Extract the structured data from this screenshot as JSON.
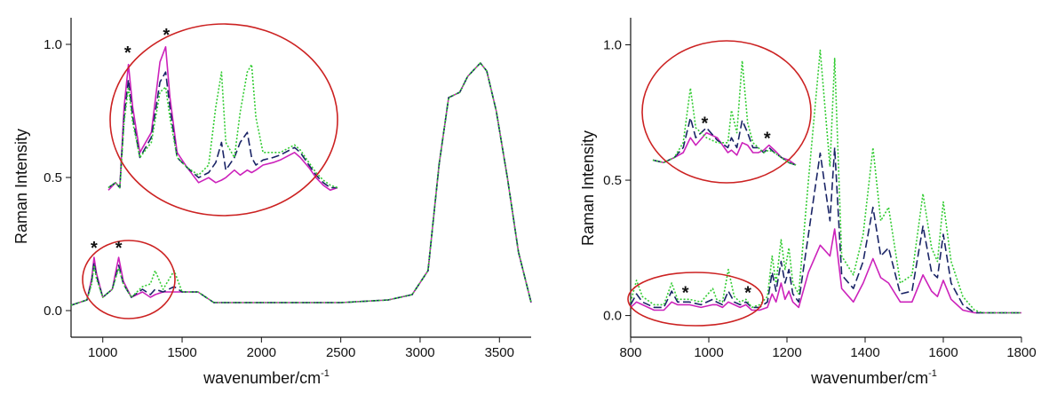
{
  "colors": {
    "magenta": "#cc22bb",
    "navy": "#1a2466",
    "green": "#33cc33",
    "circle": "#cc2222",
    "axis": "#111111"
  },
  "chart_data": [
    {
      "type": "line",
      "title": "",
      "xlabel": "wavenumber/cm",
      "xlabel_sup": "-1",
      "ylabel": "Raman Intensity",
      "xlim": [
        800,
        3700
      ],
      "ylim": [
        -0.1,
        1.1
      ],
      "xticks": [
        "1000",
        "1500",
        "2000",
        "2500",
        "3000",
        "3500"
      ],
      "xtick_values": [
        1000,
        1500,
        2000,
        2500,
        3000,
        3500
      ],
      "yticks": [
        "0.0",
        "0.5",
        "1.0"
      ],
      "ytick_values": [
        0.0,
        0.5,
        1.0
      ],
      "series": [
        {
          "style": "solid",
          "color": "#cc22bb",
          "x": [
            800,
            850,
            900,
            930,
            945,
            960,
            1000,
            1060,
            1100,
            1130,
            1180,
            1250,
            1300,
            1330,
            1380,
            1450,
            1500,
            1600,
            1700,
            2000,
            2500,
            2800,
            2950,
            3050,
            3120,
            3180,
            3250,
            3300,
            3380,
            3420,
            3480,
            3550,
            3620,
            3700
          ],
          "y": [
            0.02,
            0.03,
            0.04,
            0.12,
            0.2,
            0.14,
            0.05,
            0.08,
            0.2,
            0.11,
            0.05,
            0.07,
            0.05,
            0.06,
            0.07,
            0.07,
            0.07,
            0.07,
            0.03,
            0.03,
            0.03,
            0.04,
            0.06,
            0.15,
            0.55,
            0.8,
            0.82,
            0.88,
            0.93,
            0.9,
            0.75,
            0.5,
            0.22,
            0.03
          ]
        },
        {
          "style": "dashed",
          "color": "#1a2466",
          "x": [
            800,
            850,
            900,
            930,
            945,
            960,
            1000,
            1060,
            1100,
            1130,
            1180,
            1250,
            1300,
            1330,
            1380,
            1450,
            1500,
            1600,
            1700,
            2000,
            2500,
            2800,
            2950,
            3050,
            3120,
            3180,
            3250,
            3300,
            3380,
            3420,
            3480,
            3550,
            3620,
            3700
          ],
          "y": [
            0.02,
            0.03,
            0.04,
            0.11,
            0.18,
            0.13,
            0.05,
            0.08,
            0.17,
            0.1,
            0.05,
            0.08,
            0.06,
            0.08,
            0.07,
            0.09,
            0.07,
            0.07,
            0.03,
            0.03,
            0.03,
            0.04,
            0.06,
            0.15,
            0.55,
            0.8,
            0.82,
            0.88,
            0.93,
            0.9,
            0.75,
            0.5,
            0.22,
            0.03
          ]
        },
        {
          "style": "dotted",
          "color": "#33cc33",
          "x": [
            800,
            850,
            900,
            930,
            945,
            960,
            1000,
            1060,
            1100,
            1130,
            1180,
            1250,
            1300,
            1330,
            1380,
            1450,
            1500,
            1600,
            1700,
            2000,
            2500,
            2800,
            2950,
            3050,
            3120,
            3180,
            3250,
            3300,
            3380,
            3420,
            3480,
            3550,
            3620,
            3700
          ],
          "y": [
            0.02,
            0.03,
            0.04,
            0.1,
            0.17,
            0.12,
            0.05,
            0.08,
            0.16,
            0.1,
            0.05,
            0.09,
            0.1,
            0.15,
            0.08,
            0.15,
            0.07,
            0.07,
            0.03,
            0.03,
            0.03,
            0.04,
            0.06,
            0.15,
            0.55,
            0.8,
            0.82,
            0.88,
            0.93,
            0.9,
            0.75,
            0.5,
            0.22,
            0.03
          ]
        }
      ],
      "annotations": [
        {
          "text": "*",
          "x": 945,
          "y": 0.2
        },
        {
          "text": "*",
          "x": 1100,
          "y": 0.2
        },
        {
          "text": "*",
          "x": 1335,
          "y": 0.98
        },
        {
          "text": "*",
          "x": 1605,
          "y": 1.05
        }
      ],
      "inset": {
        "series": [
          {
            "style": "solid",
            "color": "#cc22bb",
            "x": [
              1200,
              1250,
              1280,
              1310,
              1340,
              1370,
              1420,
              1500,
              1560,
              1600,
              1630,
              1680,
              1750,
              1830,
              1900,
              1950,
              1990,
              2020,
              2080,
              2120,
              2170,
              2200,
              2230,
              2280,
              2350,
              2400,
              2500,
              2540,
              2600,
              2650,
              2700,
              2750,
              2800
            ],
            "y": [
              0.47,
              0.5,
              0.48,
              0.8,
              0.97,
              0.8,
              0.62,
              0.7,
              0.98,
              1.04,
              0.84,
              0.62,
              0.56,
              0.5,
              0.52,
              0.5,
              0.51,
              0.52,
              0.55,
              0.53,
              0.55,
              0.54,
              0.55,
              0.57,
              0.58,
              0.59,
              0.62,
              0.6,
              0.56,
              0.52,
              0.49,
              0.47,
              0.48
            ]
          },
          {
            "style": "dashed",
            "color": "#1a2466",
            "x": [
              1200,
              1250,
              1280,
              1310,
              1340,
              1370,
              1420,
              1500,
              1560,
              1600,
              1630,
              1680,
              1750,
              1830,
              1900,
              1950,
              1990,
              2020,
              2080,
              2120,
              2170,
              2200,
              2230,
              2280,
              2350,
              2400,
              2500,
              2540,
              2600,
              2650,
              2700,
              2750,
              2800
            ],
            "y": [
              0.48,
              0.5,
              0.48,
              0.76,
              0.91,
              0.76,
              0.6,
              0.68,
              0.9,
              0.94,
              0.8,
              0.6,
              0.56,
              0.52,
              0.54,
              0.58,
              0.66,
              0.55,
              0.6,
              0.66,
              0.7,
              0.6,
              0.57,
              0.59,
              0.6,
              0.61,
              0.64,
              0.62,
              0.57,
              0.53,
              0.5,
              0.48,
              0.48
            ]
          },
          {
            "style": "dotted",
            "color": "#33cc33",
            "x": [
              1200,
              1250,
              1280,
              1310,
              1340,
              1370,
              1420,
              1500,
              1560,
              1600,
              1630,
              1680,
              1750,
              1830,
              1900,
              1950,
              1990,
              2020,
              2080,
              2120,
              2170,
              2200,
              2230,
              2280,
              2350,
              2400,
              2500,
              2540,
              2600,
              2650,
              2700,
              2750,
              2800
            ],
            "y": [
              0.48,
              0.5,
              0.48,
              0.74,
              0.88,
              0.74,
              0.6,
              0.66,
              0.86,
              0.88,
              0.76,
              0.6,
              0.56,
              0.53,
              0.57,
              0.8,
              0.94,
              0.66,
              0.6,
              0.78,
              0.94,
              0.97,
              0.76,
              0.62,
              0.62,
              0.62,
              0.65,
              0.63,
              0.58,
              0.54,
              0.51,
              0.49,
              0.48
            ]
          }
        ]
      }
    },
    {
      "type": "line",
      "title": "",
      "xlabel": "wavenumber/cm",
      "xlabel_sup": "-1",
      "ylabel": "Raman Intensity",
      "xlim": [
        800,
        1800
      ],
      "ylim": [
        -0.08,
        1.1
      ],
      "xticks": [
        "800",
        "1000",
        "1200",
        "1400",
        "1600",
        "1800"
      ],
      "xtick_values": [
        800,
        1000,
        1200,
        1400,
        1600,
        1800
      ],
      "yticks": [
        "0.0",
        "0.5",
        "1.0"
      ],
      "ytick_values": [
        0.0,
        0.5,
        1.0
      ],
      "series": [
        {
          "style": "solid",
          "color": "#cc22bb",
          "x": [
            800,
            815,
            830,
            860,
            885,
            905,
            920,
            950,
            980,
            1010,
            1020,
            1035,
            1050,
            1065,
            1080,
            1095,
            1110,
            1130,
            1150,
            1162,
            1172,
            1185,
            1195,
            1205,
            1215,
            1230,
            1255,
            1285,
            1310,
            1322,
            1340,
            1370,
            1395,
            1420,
            1440,
            1460,
            1490,
            1520,
            1548,
            1570,
            1585,
            1600,
            1620,
            1650,
            1680,
            1700,
            1750,
            1800
          ],
          "y": [
            0.03,
            0.05,
            0.04,
            0.02,
            0.02,
            0.05,
            0.04,
            0.04,
            0.03,
            0.04,
            0.04,
            0.03,
            0.05,
            0.04,
            0.03,
            0.04,
            0.02,
            0.02,
            0.03,
            0.08,
            0.05,
            0.12,
            0.06,
            0.09,
            0.05,
            0.03,
            0.16,
            0.26,
            0.22,
            0.32,
            0.1,
            0.05,
            0.12,
            0.21,
            0.14,
            0.12,
            0.05,
            0.05,
            0.15,
            0.09,
            0.07,
            0.13,
            0.06,
            0.02,
            0.01,
            0.01,
            0.01,
            0.01
          ]
        },
        {
          "style": "dashed",
          "color": "#1a2466",
          "x": [
            800,
            815,
            830,
            860,
            885,
            905,
            920,
            950,
            980,
            1010,
            1020,
            1035,
            1050,
            1065,
            1080,
            1095,
            1110,
            1130,
            1150,
            1162,
            1172,
            1185,
            1195,
            1205,
            1215,
            1230,
            1255,
            1285,
            1310,
            1322,
            1340,
            1370,
            1395,
            1420,
            1440,
            1460,
            1490,
            1520,
            1548,
            1570,
            1585,
            1600,
            1620,
            1650,
            1680,
            1700,
            1750,
            1800
          ],
          "y": [
            0.04,
            0.08,
            0.05,
            0.03,
            0.03,
            0.09,
            0.05,
            0.05,
            0.04,
            0.06,
            0.05,
            0.04,
            0.09,
            0.05,
            0.04,
            0.05,
            0.03,
            0.03,
            0.05,
            0.16,
            0.09,
            0.2,
            0.12,
            0.17,
            0.08,
            0.05,
            0.3,
            0.6,
            0.35,
            0.62,
            0.15,
            0.1,
            0.2,
            0.4,
            0.22,
            0.25,
            0.08,
            0.09,
            0.33,
            0.16,
            0.14,
            0.3,
            0.12,
            0.04,
            0.01,
            0.01,
            0.01,
            0.01
          ]
        },
        {
          "style": "dotted",
          "color": "#33cc33",
          "x": [
            800,
            815,
            830,
            860,
            885,
            905,
            920,
            950,
            980,
            1010,
            1020,
            1035,
            1050,
            1065,
            1080,
            1095,
            1110,
            1130,
            1150,
            1162,
            1172,
            1185,
            1195,
            1205,
            1215,
            1230,
            1255,
            1285,
            1310,
            1322,
            1340,
            1370,
            1395,
            1420,
            1440,
            1460,
            1490,
            1520,
            1548,
            1570,
            1585,
            1600,
            1620,
            1650,
            1680,
            1700,
            1750,
            1800
          ],
          "y": [
            0.05,
            0.13,
            0.07,
            0.04,
            0.04,
            0.12,
            0.06,
            0.06,
            0.05,
            0.1,
            0.06,
            0.05,
            0.17,
            0.07,
            0.05,
            0.06,
            0.03,
            0.04,
            0.07,
            0.22,
            0.12,
            0.28,
            0.17,
            0.25,
            0.12,
            0.08,
            0.5,
            0.98,
            0.55,
            0.95,
            0.22,
            0.15,
            0.3,
            0.62,
            0.35,
            0.4,
            0.12,
            0.15,
            0.45,
            0.25,
            0.2,
            0.42,
            0.2,
            0.07,
            0.02,
            0.01,
            0.01,
            0.01
          ]
        }
      ],
      "annotations": [
        {
          "text": "*",
          "x": 940,
          "y": 0.05
        },
        {
          "text": "*",
          "x": 1100,
          "y": 0.05
        },
        {
          "text": "*",
          "x": 945,
          "y": 0.68
        },
        {
          "text": "*",
          "x": 1120,
          "y": 0.62
        }
      ],
      "inset": {
        "series": [
          {
            "style": "solid",
            "color": "#cc22bb",
            "x": [
              800,
              830,
              860,
              885,
              905,
              920,
              950,
              980,
              1010,
              1020,
              1035,
              1050,
              1065,
              1080,
              1095,
              1110,
              1125,
              1140,
              1160,
              1180,
              1200
            ],
            "y": [
              0.57,
              0.56,
              0.58,
              0.6,
              0.66,
              0.63,
              0.68,
              0.66,
              0.6,
              0.61,
              0.59,
              0.64,
              0.63,
              0.6,
              0.6,
              0.61,
              0.63,
              0.61,
              0.58,
              0.57,
              0.55
            ]
          },
          {
            "style": "dashed",
            "color": "#1a2466",
            "x": [
              800,
              830,
              860,
              885,
              905,
              920,
              950,
              980,
              1010,
              1020,
              1035,
              1050,
              1065,
              1080,
              1095,
              1110,
              1125,
              1140,
              1160,
              1180,
              1200
            ],
            "y": [
              0.57,
              0.56,
              0.58,
              0.62,
              0.74,
              0.66,
              0.7,
              0.65,
              0.62,
              0.66,
              0.62,
              0.73,
              0.68,
              0.62,
              0.62,
              0.6,
              0.62,
              0.6,
              0.58,
              0.56,
              0.55
            ]
          },
          {
            "style": "dotted",
            "color": "#33cc33",
            "x": [
              800,
              830,
              860,
              885,
              905,
              920,
              950,
              980,
              1010,
              1020,
              1035,
              1050,
              1065,
              1080,
              1095,
              1110,
              1125,
              1140,
              1160,
              1180,
              1200
            ],
            "y": [
              0.57,
              0.56,
              0.58,
              0.64,
              0.86,
              0.7,
              0.66,
              0.64,
              0.64,
              0.77,
              0.68,
              0.97,
              0.72,
              0.64,
              0.62,
              0.6,
              0.61,
              0.6,
              0.58,
              0.56,
              0.55
            ]
          }
        ]
      }
    }
  ]
}
